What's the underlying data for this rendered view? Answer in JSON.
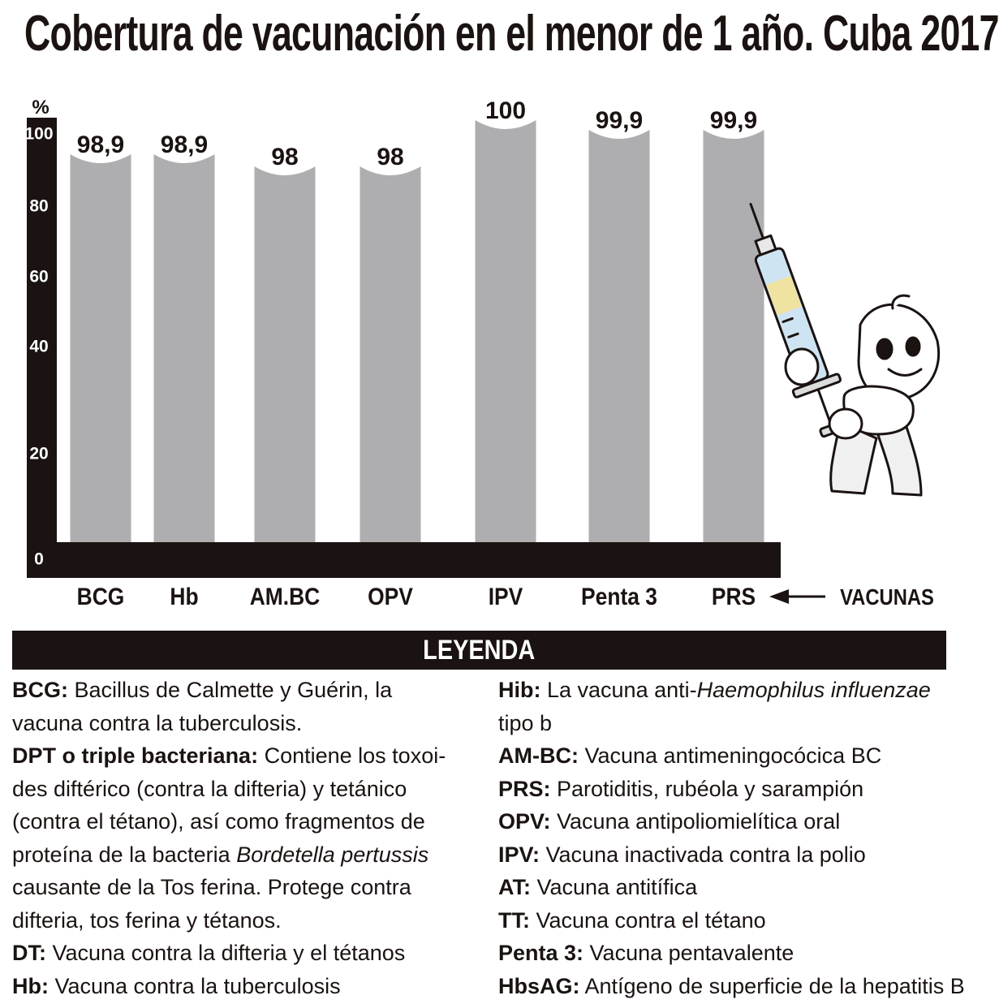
{
  "title": "Cobertura de vacunación en el menor de 1 año. Cuba 2017",
  "chart_data": {
    "type": "bar",
    "title": "Cobertura de vacunación en el menor de 1 año. Cuba 2017",
    "ylabel": "%",
    "xlabel": "VACUNAS",
    "categories": [
      "BCG",
      "Hb",
      "AM.BC",
      "OPV",
      "IPV",
      "Penta 3",
      "PRS"
    ],
    "values": [
      98.9,
      98.9,
      98,
      98,
      100,
      99.9,
      99.9
    ],
    "value_labels": [
      "98,9",
      "98,9",
      "98",
      "98",
      "100",
      "99,9",
      "99,9"
    ],
    "yticks": [
      "0",
      "20",
      "40",
      "60",
      "80",
      "100"
    ],
    "ylim": [
      0,
      100
    ],
    "grid": false,
    "colors": {
      "bar": "#aeaeb0",
      "axis": "#1a1311"
    }
  },
  "legend": {
    "header": "LEYENDA",
    "left": [
      {
        "abbr": "BCG:",
        "text": " Bacillus de Calmette y Guérin, la vacuna contra la tuberculosis."
      },
      {
        "abbr": "DPT o triple bacteriana:",
        "text": " Contiene los toxoi­des diftérico (contra la difteria) y tetánico (contra el tétano), así como fragmentos de proteína de la bacteria ",
        "italic": "Bordetella pertussis",
        "text2": " causante de la Tos ferina. Protege contra difteria, tos ferina y tétanos."
      },
      {
        "abbr": "DT:",
        "text": " Vacuna contra la difteria y el tétanos"
      },
      {
        "abbr": "Hb:",
        "text": " Vacuna contra la tuberculosis"
      }
    ],
    "right": [
      {
        "abbr": "Hib:",
        "text": " La vacuna anti-",
        "italic": "Haemophilus influenzae",
        "text2": " tipo b"
      },
      {
        "abbr": "AM-BC:",
        "text": " Vacuna antimeningocócica BC"
      },
      {
        "abbr": "PRS:",
        "text": " Parotiditis, rubéola y sarampión"
      },
      {
        "abbr": "OPV:",
        "text": " Vacuna antipoliomielítica oral"
      },
      {
        "abbr": "IPV:",
        "text": " Vacuna inactivada contra la polio"
      },
      {
        "abbr": "AT:",
        "text": " Vacuna antitífica"
      },
      {
        "abbr": "TT:",
        "text": " Vacuna contra el tétano"
      },
      {
        "abbr": "Penta 3:",
        "text": " Vacuna pentavalente"
      },
      {
        "abbr": "HbsAG:",
        "text": " Antígeno de superficie de la hepatitis B"
      }
    ]
  }
}
